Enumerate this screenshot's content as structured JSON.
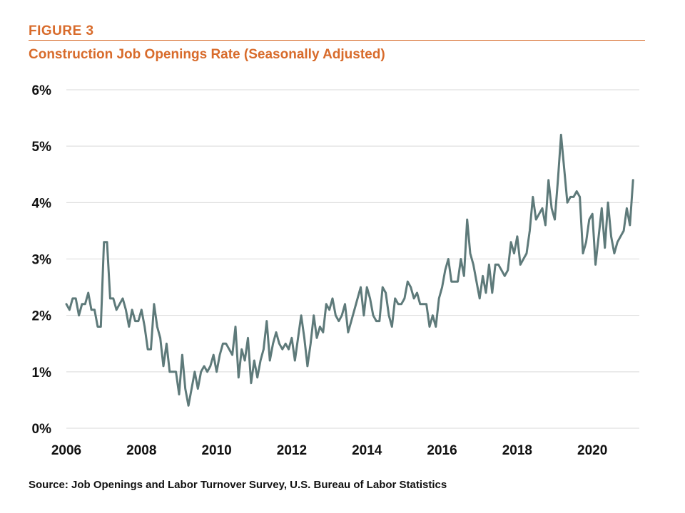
{
  "header": {
    "figure_label": "FIGURE 3",
    "title": "Construction Job Openings Rate (Seasonally Adjusted)"
  },
  "footer": {
    "source": "Source: Job Openings and Labor Turnover Survey, U.S. Bureau of Labor Statistics"
  },
  "colors": {
    "accent": "#d86b2b",
    "line": "#5e7a7a",
    "grid": "#d9d9d9",
    "text": "#111111"
  },
  "chart_data": {
    "type": "line",
    "title": "Construction Job Openings Rate (Seasonally Adjusted)",
    "xlabel": "",
    "ylabel": "",
    "xlim": [
      2006.0,
      2021.25
    ],
    "ylim": [
      0,
      6
    ],
    "x_ticks": [
      2006,
      2008,
      2010,
      2012,
      2014,
      2016,
      2018,
      2020
    ],
    "x_tick_labels": [
      "2006",
      "2008",
      "2010",
      "2012",
      "2014",
      "2016",
      "2018",
      "2020"
    ],
    "y_ticks": [
      0,
      1,
      2,
      3,
      4,
      5,
      6
    ],
    "y_tick_labels": [
      "0%",
      "1%",
      "2%",
      "3%",
      "4%",
      "5%",
      "6%"
    ],
    "grid": true,
    "legend": "none",
    "x_start": "2006-01",
    "frequency": "monthly",
    "series": [
      {
        "values": [
          2.2,
          2.1,
          2.3,
          2.3,
          2.0,
          2.2,
          2.2,
          2.4,
          2.1,
          2.1,
          1.8,
          1.8,
          3.3,
          3.3,
          2.3,
          2.3,
          2.1,
          2.2,
          2.3,
          2.1,
          1.8,
          2.1,
          1.9,
          1.9,
          2.1,
          1.8,
          1.4,
          1.4,
          2.2,
          1.8,
          1.6,
          1.1,
          1.5,
          1.0,
          1.0,
          1.0,
          0.6,
          1.3,
          0.7,
          0.4,
          0.7,
          1.0,
          0.7,
          1.0,
          1.1,
          1.0,
          1.1,
          1.3,
          1.0,
          1.3,
          1.5,
          1.5,
          1.4,
          1.3,
          1.8,
          0.9,
          1.4,
          1.2,
          1.6,
          0.8,
          1.2,
          0.9,
          1.2,
          1.4,
          1.9,
          1.2,
          1.5,
          1.7,
          1.5,
          1.4,
          1.5,
          1.4,
          1.6,
          1.2,
          1.6,
          2.0,
          1.6,
          1.1,
          1.5,
          2.0,
          1.6,
          1.8,
          1.7,
          2.2,
          2.1,
          2.3,
          2.0,
          1.9,
          2.0,
          2.2,
          1.7,
          1.9,
          2.1,
          2.3,
          2.5,
          2.0,
          2.5,
          2.3,
          2.0,
          1.9,
          1.9,
          2.5,
          2.4,
          2.0,
          1.8,
          2.3,
          2.2,
          2.2,
          2.3,
          2.6,
          2.5,
          2.3,
          2.4,
          2.2,
          2.2,
          2.2,
          1.8,
          2.0,
          1.8,
          2.3,
          2.5,
          2.8,
          3.0,
          2.6,
          2.6,
          2.6,
          3.0,
          2.7,
          3.7,
          3.1,
          2.9,
          2.6,
          2.3,
          2.7,
          2.4,
          2.9,
          2.4,
          2.9,
          2.9,
          2.8,
          2.7,
          2.8,
          3.3,
          3.1,
          3.4,
          2.9,
          3.0,
          3.1,
          3.5,
          4.1,
          3.7,
          3.8,
          3.9,
          3.6,
          4.4,
          3.9,
          3.7,
          4.4,
          5.2,
          4.6,
          4.0,
          4.1,
          4.1,
          4.2,
          4.1,
          3.1,
          3.3,
          3.7,
          3.8,
          2.9,
          3.4,
          3.9,
          3.2,
          4.0,
          3.4,
          3.1,
          3.3,
          3.4,
          3.5,
          3.9,
          3.6,
          4.4
        ]
      }
    ]
  }
}
